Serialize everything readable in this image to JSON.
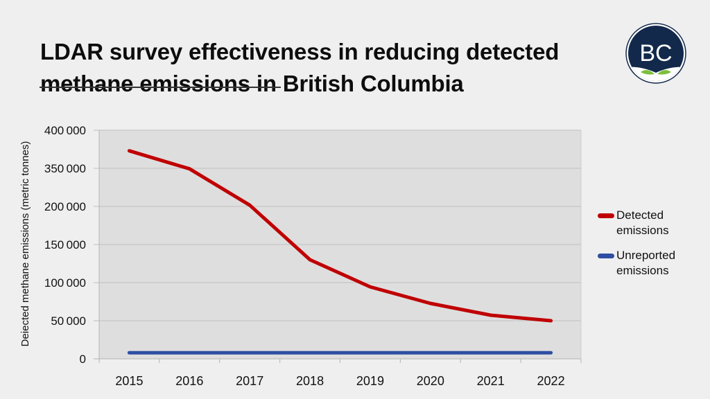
{
  "title": {
    "line1": "LDAR survey effectiveness in reducing detected",
    "line2": "methane emissions in British Columbia"
  },
  "logo": {
    "text": "BC",
    "icon": "bc-leaf-logo",
    "colors": {
      "navy": "#13294b",
      "leaf": "#7bbf3a"
    }
  },
  "chart_data": {
    "type": "line",
    "title": "LDAR survey effectiveness in reducing detected methane emissions in British Columbia",
    "xlabel": "",
    "ylabel": "Deiected methane emissions (metric tonnes)",
    "categories": [
      "2015",
      "2016",
      "2017",
      "2018",
      "2019",
      "2020",
      "2021",
      "2022"
    ],
    "y_tick_labels": [
      "0",
      "50000",
      "100000",
      "150000",
      "200000",
      "350000",
      "400000"
    ],
    "ylim": [
      0,
      400000
    ],
    "grid": true,
    "legend_position": "right",
    "series": [
      {
        "name": "Detected emissions",
        "color": "#c00000",
        "values": [
          373000,
          348000,
          205000,
          130000,
          94500,
          72700,
          57300,
          50000
        ]
      },
      {
        "name": "Unreported emissions",
        "color": "#2e4ea3",
        "values": [
          8000,
          8000,
          8000,
          8000,
          8000,
          8000,
          8000,
          8000
        ]
      }
    ]
  },
  "legend": {
    "items": [
      {
        "line1": "Detected",
        "line2": "emissions",
        "color": "#c00000"
      },
      {
        "line1": "Unreported",
        "line2": "emissions",
        "color": "#2e4ea3"
      }
    ]
  }
}
